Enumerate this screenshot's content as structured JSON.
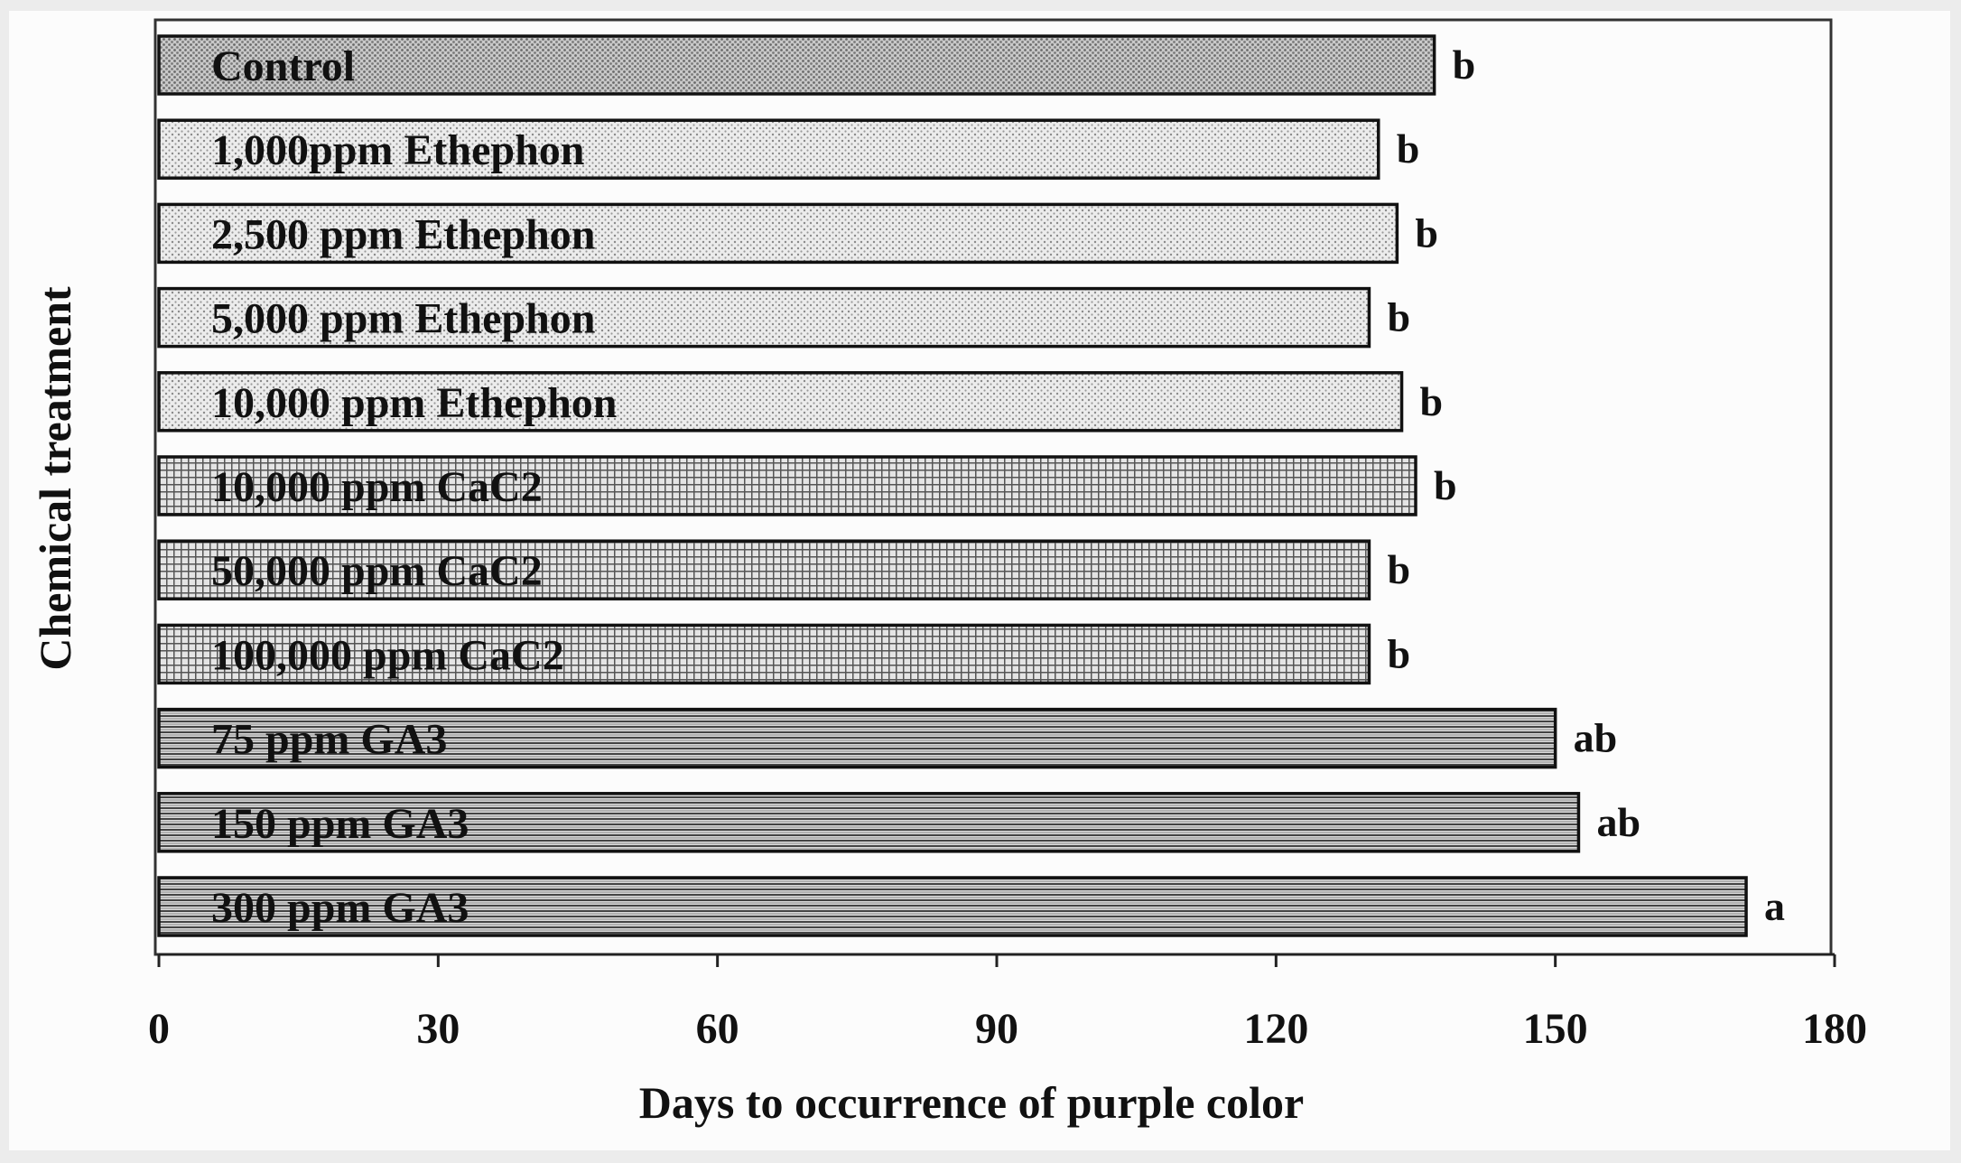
{
  "chart_data": {
    "type": "bar",
    "orientation": "horizontal",
    "title": "",
    "xlabel": "Days to occurrence of purple color",
    "ylabel": "Chemical treatment",
    "xlim": [
      0,
      180
    ],
    "xticks": [
      0,
      30,
      60,
      90,
      120,
      150,
      180
    ],
    "grid": false,
    "categories": [
      "Control",
      "1,000ppm Ethephon",
      "2,500 ppm Ethephon",
      "5,000 ppm Ethephon",
      "10,000 ppm Ethephon",
      "10,000 ppm CaC2",
      "50,000 ppm CaC2",
      "100,000 ppm CaC2",
      "75 ppm GA3",
      "150 ppm GA3",
      "300 ppm GA3"
    ],
    "values": [
      137,
      131,
      133,
      130,
      133.5,
      135,
      130,
      130,
      150,
      152.5,
      170.5
    ],
    "significance_letters": [
      "b",
      "b",
      "b",
      "b",
      "b",
      "b",
      "b",
      "b",
      "ab",
      "ab",
      "a"
    ],
    "patterns": [
      "dense-dots",
      "dots",
      "dots",
      "dots",
      "dots",
      "grid",
      "grid",
      "grid",
      "horizontal-lines",
      "horizontal-lines",
      "horizontal-lines"
    ]
  }
}
